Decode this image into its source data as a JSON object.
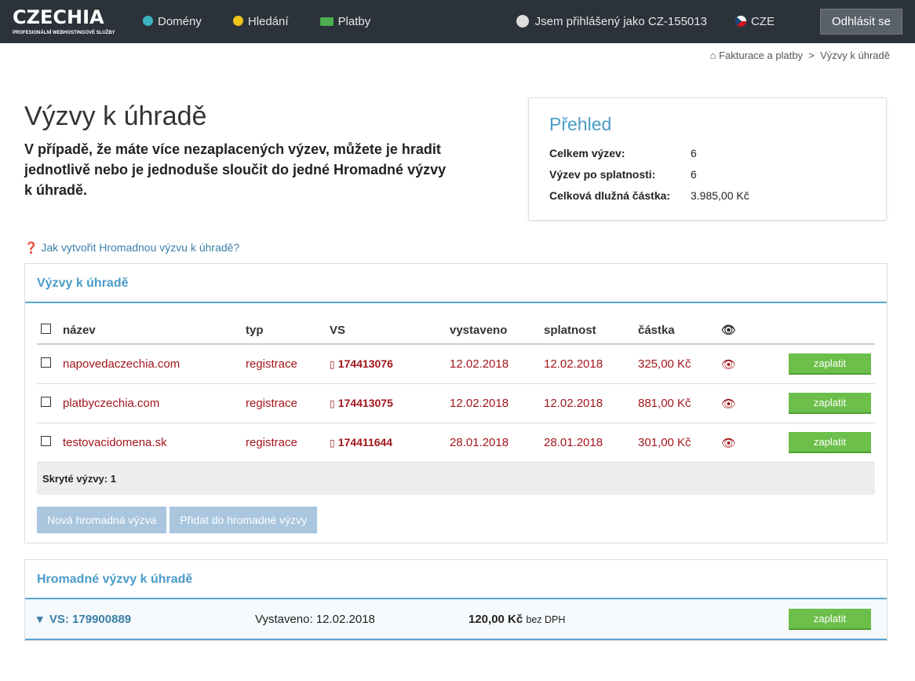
{
  "header": {
    "logo": "CZECHIA",
    "logo_sub": "PROFESIONÁLNÍ WEBHOSTINGOVÉ SLUŽBY",
    "nav": [
      {
        "label": "Domény",
        "icon": "globe-icon",
        "color": "#3bb3c3"
      },
      {
        "label": "Hledání",
        "icon": "search-globe-icon",
        "color": "#f0c419"
      },
      {
        "label": "Platby",
        "icon": "money-icon",
        "color": "#4caf50"
      }
    ],
    "user": "Jsem přihlášený jako CZ-155013",
    "lang": "CZE",
    "logout": "Odhlásit se"
  },
  "breadcrumb": {
    "home": "Fakturace a platby",
    "sep": ">",
    "current": "Výzvy k úhradě"
  },
  "page": {
    "title": "Výzvy k úhradě",
    "lead": "V případě, že máte více nezaplacených výzev, můžete je hradit jednotlivě nebo je jednoduše sloučit do jedné Hromadné výzvy k úhradě.",
    "help": "Jak vytvořit Hromadnou výzvu k úhradě?"
  },
  "overview": {
    "title": "Přehled",
    "rows": [
      {
        "label": "Celkem výzev:",
        "value": "6"
      },
      {
        "label": "Výzev po splatnosti:",
        "value": "6"
      },
      {
        "label": "Celková dlužná částka:",
        "value": "3.985,00 Kč"
      }
    ]
  },
  "invoices": {
    "title": "Výzvy k úhradě",
    "columns": [
      "název",
      "typ",
      "VS",
      "vystaveno",
      "splatnost",
      "částka"
    ],
    "rows": [
      {
        "name": "napovedaczechia.com",
        "type": "registrace",
        "vs": "174413076",
        "issued": "12.02.2018",
        "due": "12.02.2018",
        "amount": "325,00 Kč",
        "pay": "zaplatit"
      },
      {
        "name": "platbyczechia.com",
        "type": "registrace",
        "vs": "174413075",
        "issued": "12.02.2018",
        "due": "12.02.2018",
        "amount": "881,00 Kč",
        "pay": "zaplatit"
      },
      {
        "name": "testovacidomena.sk",
        "type": "registrace",
        "vs": "174411644",
        "issued": "28.01.2018",
        "due": "28.01.2018",
        "amount": "301,00 Kč",
        "pay": "zaplatit"
      }
    ],
    "hidden": "Skryté výzvy: 1",
    "btn_new": "Nová hromadná výzva",
    "btn_add": "Přidat do hromadné výzvy"
  },
  "bulk": {
    "title": "Hromadné výzvy k úhradě",
    "vs": "VS: 179900889",
    "issued": "Vystaveno: 12.02.2018",
    "amount": "120,00 Kč",
    "tax": "bez DPH",
    "pay": "zaplatit"
  }
}
